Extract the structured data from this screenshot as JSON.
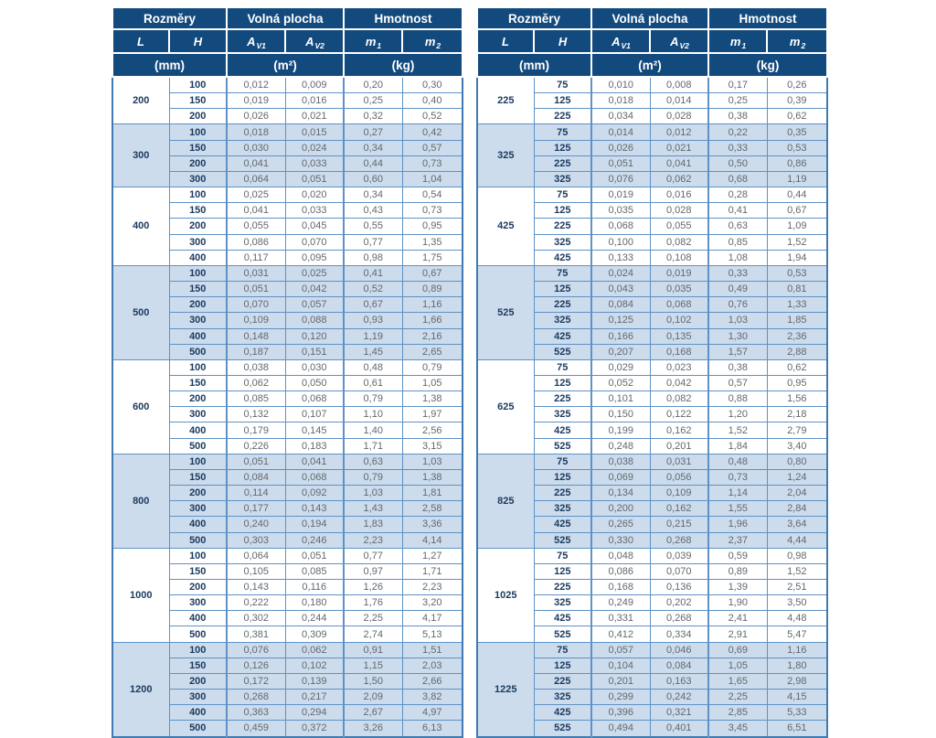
{
  "header": {
    "sections": [
      "Rozměry",
      "Volná plocha",
      "Hmotnost"
    ],
    "columns": [
      {
        "base": "L",
        "sub": ""
      },
      {
        "base": "H",
        "sub": ""
      },
      {
        "base": "A",
        "sub": "V1"
      },
      {
        "base": "A",
        "sub": "V2"
      },
      {
        "base": "m",
        "sub": "1"
      },
      {
        "base": "m",
        "sub": "2"
      }
    ],
    "units": [
      "(mm)",
      "(m²)",
      "(kg)"
    ]
  },
  "colors": {
    "header_bg": "#134a7d",
    "header_text": "#ffffff",
    "stripe_bg": "#ccdcec",
    "border_blue": "#5e92c5",
    "outer_border": "#3f7ab2",
    "value_text": "#63686d",
    "dim_text": "#1b3a5f"
  },
  "tables": [
    {
      "groups": [
        {
          "l": "200",
          "rows": [
            [
              "100",
              "0,012",
              "0,009",
              "0,20",
              "0,30"
            ],
            [
              "150",
              "0,019",
              "0,016",
              "0,25",
              "0,40"
            ],
            [
              "200",
              "0,026",
              "0,021",
              "0,32",
              "0,52"
            ]
          ]
        },
        {
          "l": "300",
          "rows": [
            [
              "100",
              "0,018",
              "0,015",
              "0,27",
              "0,42"
            ],
            [
              "150",
              "0,030",
              "0,024",
              "0,34",
              "0,57"
            ],
            [
              "200",
              "0,041",
              "0,033",
              "0,44",
              "0,73"
            ],
            [
              "300",
              "0,064",
              "0,051",
              "0,60",
              "1,04"
            ]
          ]
        },
        {
          "l": "400",
          "rows": [
            [
              "100",
              "0,025",
              "0,020",
              "0,34",
              "0,54"
            ],
            [
              "150",
              "0,041",
              "0,033",
              "0,43",
              "0,73"
            ],
            [
              "200",
              "0,055",
              "0,045",
              "0,55",
              "0,95"
            ],
            [
              "300",
              "0,086",
              "0,070",
              "0,77",
              "1,35"
            ],
            [
              "400",
              "0,117",
              "0,095",
              "0,98",
              "1,75"
            ]
          ]
        },
        {
          "l": "500",
          "rows": [
            [
              "100",
              "0,031",
              "0,025",
              "0,41",
              "0,67"
            ],
            [
              "150",
              "0,051",
              "0,042",
              "0,52",
              "0,89"
            ],
            [
              "200",
              "0,070",
              "0,057",
              "0,67",
              "1,16"
            ],
            [
              "300",
              "0,109",
              "0,088",
              "0,93",
              "1,66"
            ],
            [
              "400",
              "0,148",
              "0,120",
              "1,19",
              "2,16"
            ],
            [
              "500",
              "0,187",
              "0,151",
              "1,45",
              "2,65"
            ]
          ]
        },
        {
          "l": "600",
          "rows": [
            [
              "100",
              "0,038",
              "0,030",
              "0,48",
              "0,79"
            ],
            [
              "150",
              "0,062",
              "0,050",
              "0,61",
              "1,05"
            ],
            [
              "200",
              "0,085",
              "0,068",
              "0,79",
              "1,38"
            ],
            [
              "300",
              "0,132",
              "0,107",
              "1,10",
              "1,97"
            ],
            [
              "400",
              "0,179",
              "0,145",
              "1,40",
              "2,56"
            ],
            [
              "500",
              "0,226",
              "0,183",
              "1,71",
              "3,15"
            ]
          ]
        },
        {
          "l": "800",
          "rows": [
            [
              "100",
              "0,051",
              "0,041",
              "0,63",
              "1,03"
            ],
            [
              "150",
              "0,084",
              "0,068",
              "0,79",
              "1,38"
            ],
            [
              "200",
              "0,114",
              "0,092",
              "1,03",
              "1,81"
            ],
            [
              "300",
              "0,177",
              "0,143",
              "1,43",
              "2,58"
            ],
            [
              "400",
              "0,240",
              "0,194",
              "1,83",
              "3,36"
            ],
            [
              "500",
              "0,303",
              "0,246",
              "2,23",
              "4,14"
            ]
          ]
        },
        {
          "l": "1000",
          "rows": [
            [
              "100",
              "0,064",
              "0,051",
              "0,77",
              "1,27"
            ],
            [
              "150",
              "0,105",
              "0,085",
              "0,97",
              "1,71"
            ],
            [
              "200",
              "0,143",
              "0,116",
              "1,26",
              "2,23"
            ],
            [
              "300",
              "0,222",
              "0,180",
              "1,76",
              "3,20"
            ],
            [
              "400",
              "0,302",
              "0,244",
              "2,25",
              "4,17"
            ],
            [
              "500",
              "0,381",
              "0,309",
              "2,74",
              "5,13"
            ]
          ]
        },
        {
          "l": "1200",
          "rows": [
            [
              "100",
              "0,076",
              "0,062",
              "0,91",
              "1,51"
            ],
            [
              "150",
              "0,126",
              "0,102",
              "1,15",
              "2,03"
            ],
            [
              "200",
              "0,172",
              "0,139",
              "1,50",
              "2,66"
            ],
            [
              "300",
              "0,268",
              "0,217",
              "2,09",
              "3,82"
            ],
            [
              "400",
              "0,363",
              "0,294",
              "2,67",
              "4,97"
            ],
            [
              "500",
              "0,459",
              "0,372",
              "3,26",
              "6,13"
            ]
          ]
        }
      ]
    },
    {
      "groups": [
        {
          "l": "225",
          "rows": [
            [
              "75",
              "0,010",
              "0,008",
              "0,17",
              "0,26"
            ],
            [
              "125",
              "0,018",
              "0,014",
              "0,25",
              "0,39"
            ],
            [
              "225",
              "0,034",
              "0,028",
              "0,38",
              "0,62"
            ]
          ]
        },
        {
          "l": "325",
          "rows": [
            [
              "75",
              "0,014",
              "0,012",
              "0,22",
              "0,35"
            ],
            [
              "125",
              "0,026",
              "0,021",
              "0,33",
              "0,53"
            ],
            [
              "225",
              "0,051",
              "0,041",
              "0,50",
              "0,86"
            ],
            [
              "325",
              "0,076",
              "0,062",
              "0,68",
              "1,19"
            ]
          ]
        },
        {
          "l": "425",
          "rows": [
            [
              "75",
              "0,019",
              "0,016",
              "0,28",
              "0,44"
            ],
            [
              "125",
              "0,035",
              "0,028",
              "0,41",
              "0,67"
            ],
            [
              "225",
              "0,068",
              "0,055",
              "0,63",
              "1,09"
            ],
            [
              "325",
              "0,100",
              "0,082",
              "0,85",
              "1,52"
            ],
            [
              "425",
              "0,133",
              "0,108",
              "1,08",
              "1,94"
            ]
          ]
        },
        {
          "l": "525",
          "rows": [
            [
              "75",
              "0,024",
              "0,019",
              "0,33",
              "0,53"
            ],
            [
              "125",
              "0,043",
              "0,035",
              "0,49",
              "0,81"
            ],
            [
              "225",
              "0,084",
              "0,068",
              "0,76",
              "1,33"
            ],
            [
              "325",
              "0,125",
              "0,102",
              "1,03",
              "1,85"
            ],
            [
              "425",
              "0,166",
              "0,135",
              "1,30",
              "2,36"
            ],
            [
              "525",
              "0,207",
              "0,168",
              "1,57",
              "2,88"
            ]
          ]
        },
        {
          "l": "625",
          "rows": [
            [
              "75",
              "0,029",
              "0,023",
              "0,38",
              "0,62"
            ],
            [
              "125",
              "0,052",
              "0,042",
              "0,57",
              "0,95"
            ],
            [
              "225",
              "0,101",
              "0,082",
              "0,88",
              "1,56"
            ],
            [
              "325",
              "0,150",
              "0,122",
              "1,20",
              "2,18"
            ],
            [
              "425",
              "0,199",
              "0,162",
              "1,52",
              "2,79"
            ],
            [
              "525",
              "0,248",
              "0,201",
              "1,84",
              "3,40"
            ]
          ]
        },
        {
          "l": "825",
          "rows": [
            [
              "75",
              "0,038",
              "0,031",
              "0,48",
              "0,80"
            ],
            [
              "125",
              "0,069",
              "0,056",
              "0,73",
              "1,24"
            ],
            [
              "225",
              "0,134",
              "0,109",
              "1,14",
              "2,04"
            ],
            [
              "325",
              "0,200",
              "0,162",
              "1,55",
              "2,84"
            ],
            [
              "425",
              "0,265",
              "0,215",
              "1,96",
              "3,64"
            ],
            [
              "525",
              "0,330",
              "0,268",
              "2,37",
              "4,44"
            ]
          ]
        },
        {
          "l": "1025",
          "rows": [
            [
              "75",
              "0,048",
              "0,039",
              "0,59",
              "0,98"
            ],
            [
              "125",
              "0,086",
              "0,070",
              "0,89",
              "1,52"
            ],
            [
              "225",
              "0,168",
              "0,136",
              "1,39",
              "2,51"
            ],
            [
              "325",
              "0,249",
              "0,202",
              "1,90",
              "3,50"
            ],
            [
              "425",
              "0,331",
              "0,268",
              "2,41",
              "4,48"
            ],
            [
              "525",
              "0,412",
              "0,334",
              "2,91",
              "5,47"
            ]
          ]
        },
        {
          "l": "1225",
          "rows": [
            [
              "75",
              "0,057",
              "0,046",
              "0,69",
              "1,16"
            ],
            [
              "125",
              "0,104",
              "0,084",
              "1,05",
              "1,80"
            ],
            [
              "225",
              "0,201",
              "0,163",
              "1,65",
              "2,98"
            ],
            [
              "325",
              "0,299",
              "0,242",
              "2,25",
              "4,15"
            ],
            [
              "425",
              "0,396",
              "0,321",
              "2,85",
              "5,33"
            ],
            [
              "525",
              "0,494",
              "0,401",
              "3,45",
              "6,51"
            ]
          ]
        }
      ]
    }
  ]
}
